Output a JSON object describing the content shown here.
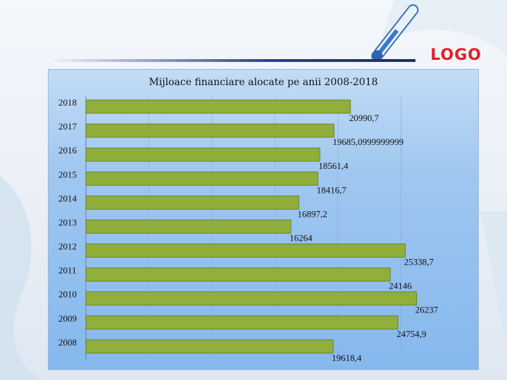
{
  "logo": {
    "text": "LOGO"
  },
  "colors": {
    "bar": "#8fae3a",
    "bar_stroke": "#5f7a1e",
    "logo": "#e0202a"
  },
  "chart_data": {
    "type": "bar",
    "orientation": "horizontal",
    "title": "Mijloace financiare alocate pe anii 2008-2018",
    "categories": [
      "2018",
      "2017",
      "2016",
      "2015",
      "2014",
      "2013",
      "2012",
      "2011",
      "2010",
      "2009",
      "2008"
    ],
    "values": [
      20990.7,
      19685.1,
      18561.4,
      18416.7,
      16897.2,
      16264,
      25338.7,
      24146,
      26237,
      24754.9,
      19618.4
    ],
    "data_labels": [
      "20990,7",
      "19685,0999999999",
      "18561,4",
      "18416,7",
      "16897,2",
      "16264",
      "25338,7",
      "24146",
      "26237",
      "24754,9",
      "19618,4"
    ],
    "xlim": [
      0,
      30000
    ],
    "grid": true,
    "legend": "none"
  }
}
